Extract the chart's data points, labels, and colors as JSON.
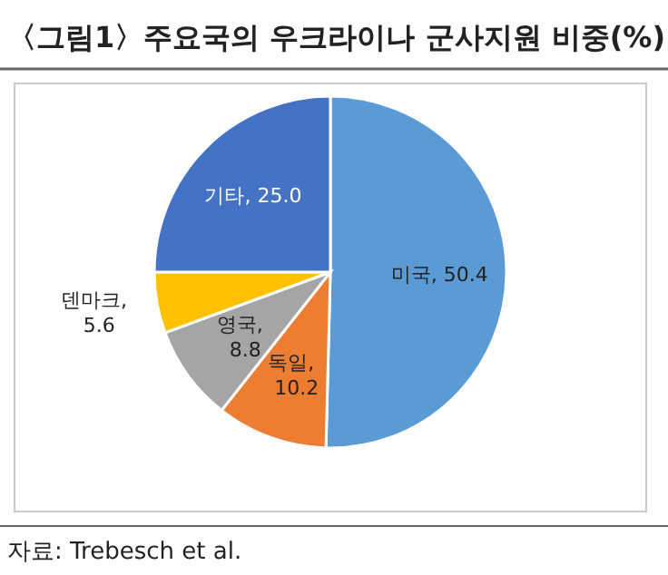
{
  "chart_data": {
    "type": "pie",
    "title": "〈그림1〉주요국의 우크라이나 군사지원 비중(%)",
    "categories": [
      "미국",
      "독일",
      "영국",
      "덴마크",
      "기타"
    ],
    "values": [
      50.4,
      10.2,
      8.8,
      5.6,
      25.0
    ],
    "value_labels": [
      ", 50.4",
      ", 10.2",
      ", 8.8",
      ", 5.6",
      ", 25.0"
    ],
    "colors": [
      "#5b9bd5",
      "#ed7d31",
      "#a5a5a5",
      "#ffc000",
      "#4472c4"
    ],
    "annotations": [
      "자료: Trebesch et al."
    ]
  }
}
